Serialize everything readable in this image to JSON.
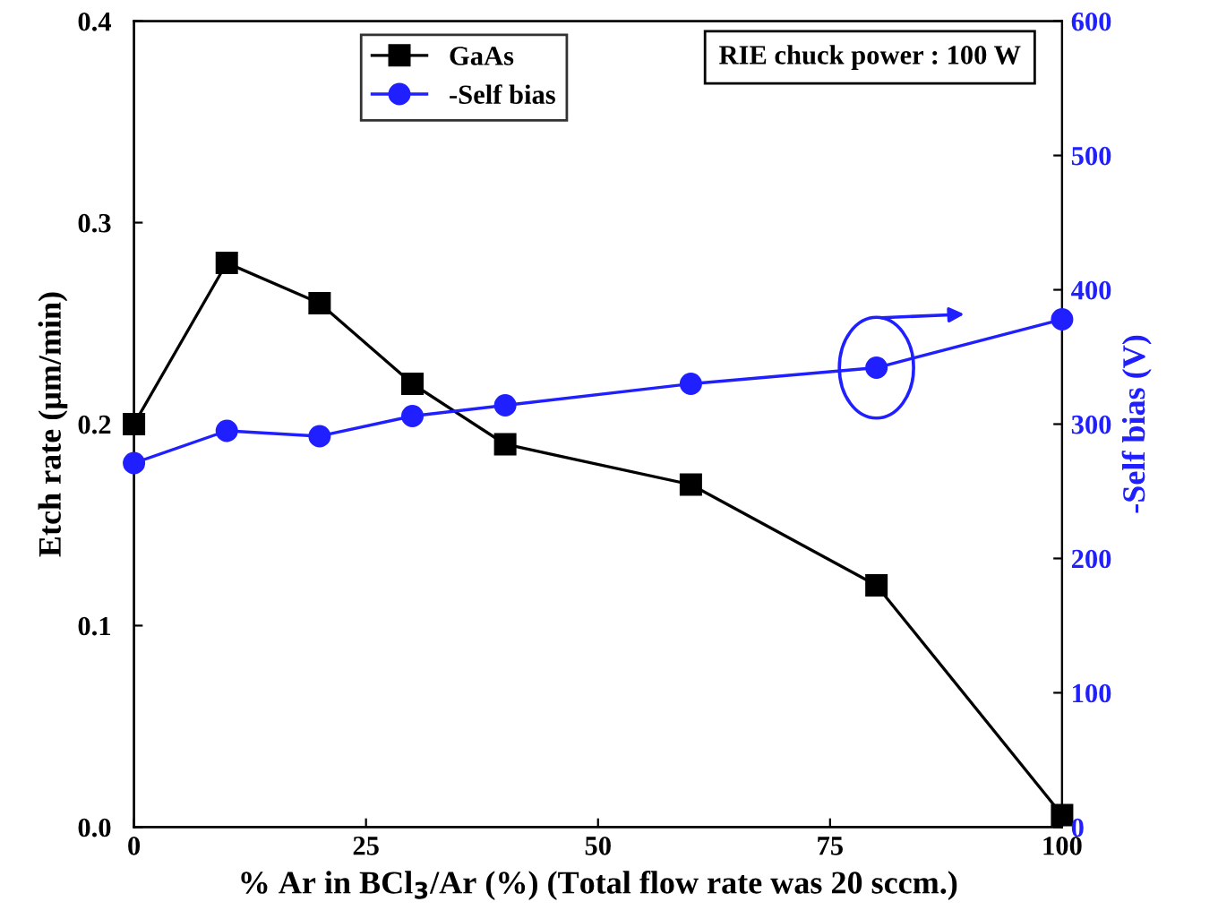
{
  "chart_data": {
    "type": "line",
    "xlabel": "% Ar in BCl$_{3}$/Ar (%) (Total flow rate was 20 sccm.)",
    "ylabel": "Etch rate (μm/min)",
    "y2label": "-Self bias (V)",
    "xlim": [
      0,
      100
    ],
    "xticks": [
      0,
      25,
      50,
      75,
      100
    ],
    "ylim": [
      0,
      0.4
    ],
    "yticks": [
      {
        "value": 0,
        "label": "0.0"
      },
      {
        "value": 0.1,
        "label": "0.1"
      },
      {
        "value": 0.2,
        "label": "0.2"
      },
      {
        "value": 0.3,
        "label": "0.3"
      },
      {
        "value": 0.4,
        "label": "0.4"
      }
    ],
    "y2lim": [
      0,
      600
    ],
    "y2ticks": [
      0,
      100,
      200,
      300,
      400,
      500,
      600
    ],
    "legend": "top left",
    "grid": false,
    "annotations": [
      "RIE chuck power : 100 W"
    ],
    "series": [
      {
        "name": "GaAs",
        "color": "#000000",
        "marker": "square",
        "x": [
          0,
          10,
          20,
          30,
          40,
          60,
          80,
          100
        ],
        "values": [
          0.2,
          0.28,
          0.26,
          0.22,
          0.19,
          0.17,
          0.12,
          0.006
        ]
      },
      {
        "name": "-Self bias",
        "color": "#1f1fff",
        "marker": "circle",
        "axis": "y2",
        "x": [
          0,
          10,
          20,
          30,
          40,
          60,
          80,
          100
        ],
        "values": [
          271,
          295,
          291,
          306,
          314,
          330,
          342,
          378
        ]
      }
    ]
  }
}
